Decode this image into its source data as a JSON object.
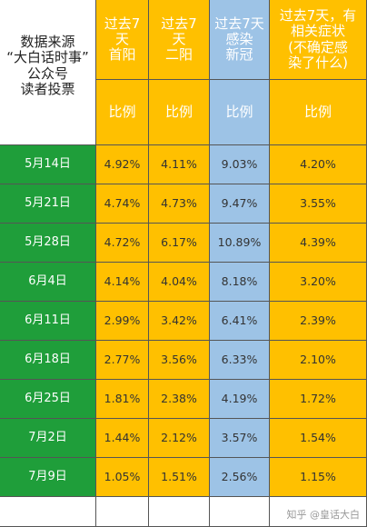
{
  "header": {
    "source_lines": [
      "数据来源",
      "“大白话时事”",
      "公众号",
      "读者投票"
    ],
    "columns": [
      {
        "lines": [
          "过去7",
          "天",
          "首阳"
        ]
      },
      {
        "lines": [
          "过去7",
          "天",
          "二阳"
        ]
      },
      {
        "lines": [
          "过去7天",
          "感染",
          "新冠"
        ]
      },
      {
        "lines": [
          "过去7天，有",
          "相关症状",
          "(不确定感",
          "染了什么)"
        ]
      }
    ]
  },
  "subheader": [
    "比例",
    "比例",
    "比例",
    "比例"
  ],
  "rows": [
    {
      "date": "5月14日",
      "values": [
        "4.92%",
        "4.11%",
        "9.03%",
        "4.20%"
      ]
    },
    {
      "date": "5月21日",
      "values": [
        "4.74%",
        "4.73%",
        "9.47%",
        "3.55%"
      ]
    },
    {
      "date": "5月28日",
      "values": [
        "4.72%",
        "6.17%",
        "10.89%",
        "4.39%"
      ]
    },
    {
      "date": "6月4日",
      "values": [
        "4.14%",
        "4.04%",
        "8.18%",
        "3.20%"
      ]
    },
    {
      "date": "6月11日",
      "values": [
        "2.99%",
        "3.42%",
        "6.41%",
        "2.39%"
      ]
    },
    {
      "date": "6月18日",
      "values": [
        "2.77%",
        "3.56%",
        "6.33%",
        "2.10%"
      ]
    },
    {
      "date": "6月25日",
      "values": [
        "1.81%",
        "2.38%",
        "4.19%",
        "1.72%"
      ]
    },
    {
      "date": "7月2日",
      "values": [
        "1.44%",
        "2.12%",
        "3.57%",
        "1.54%"
      ]
    },
    {
      "date": "7月9日",
      "values": [
        "1.05%",
        "1.51%",
        "2.56%",
        "1.15%"
      ]
    }
  ],
  "watermark": "知乎 @皇话大白"
}
